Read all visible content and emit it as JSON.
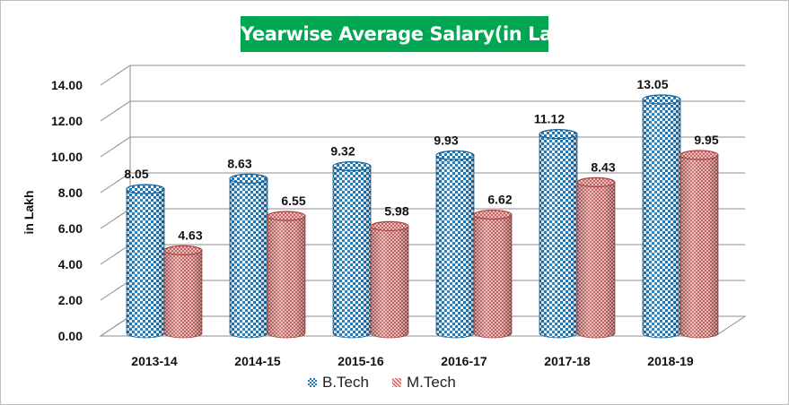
{
  "chart_data": {
    "type": "bar",
    "title": "Yearwise Average Salary(in Lakh)",
    "xlabel": "",
    "ylabel": "in Lakh",
    "categories": [
      "2013-14",
      "2014-15",
      "2015-16",
      "2016-17",
      "2017-18",
      "2018-19"
    ],
    "series": [
      {
        "name": "B.Tech",
        "values": [
          8.05,
          8.63,
          9.32,
          9.93,
          11.12,
          13.05
        ],
        "color": "#1f77b4"
      },
      {
        "name": "M.Tech",
        "values": [
          4.63,
          6.55,
          5.98,
          6.62,
          8.43,
          9.95
        ],
        "color": "#c0504d"
      }
    ],
    "y_ticks": [
      "0.00",
      "2.00",
      "4.00",
      "6.00",
      "8.00",
      "10.00",
      "12.00",
      "14.00"
    ],
    "ylim": [
      0,
      14
    ],
    "grid": true,
    "legend_position": "bottom",
    "style": "3d-cylinder"
  }
}
